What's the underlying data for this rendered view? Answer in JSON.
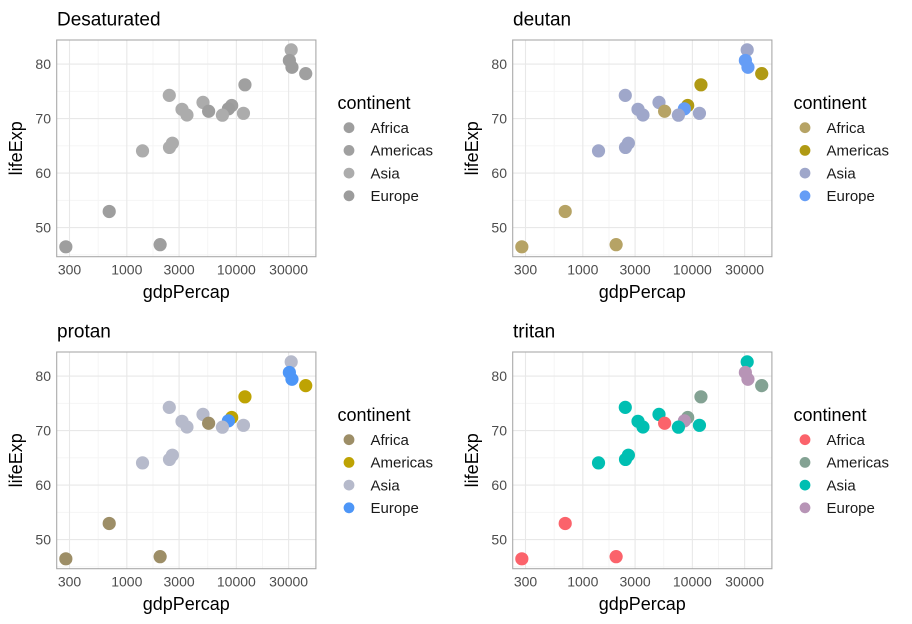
{
  "chart_data": {
    "type": "scatter",
    "figure_kind": "color-vision-deficiency simulation grid",
    "xlabel": "gdpPercap",
    "ylabel": "lifeExp",
    "x_scale": "log10",
    "x_ticks": [
      300,
      1000,
      3000,
      10000,
      30000
    ],
    "x_minor_ticks": [
      548,
      1732,
      5477,
      17321
    ],
    "y_ticks": [
      50,
      60,
      70,
      80
    ],
    "y_minor_ticks": [
      45,
      55,
      65,
      75
    ],
    "x_domain_log10": [
      2.36,
      4.726
    ],
    "y_domain": [
      44.65,
      84.41
    ],
    "grid": "on",
    "legend": {
      "title": "continent",
      "position": "right",
      "items": [
        "Africa",
        "Americas",
        "Asia",
        "Europe"
      ]
    },
    "panels": [
      {
        "title": "Desaturated",
        "palette": {
          "Africa": "#9E9E9E",
          "Americas": "#A0A0A0",
          "Asia": "#ACACAC",
          "Europe": "#9C9C9C"
        }
      },
      {
        "title": "deutan",
        "palette": {
          "Africa": "#B6A365",
          "Americas": "#B09A14",
          "Asia": "#9FA7CA",
          "Europe": "#659DF6"
        }
      },
      {
        "title": "protan",
        "palette": {
          "Africa": "#9D8E67",
          "Americas": "#BEA303",
          "Asia": "#B6BACB",
          "Europe": "#4D96F7"
        }
      },
      {
        "title": "tritan",
        "palette": {
          "Africa": "#FB636B",
          "Americas": "#83A293",
          "Asia": "#00BFB2",
          "Europe": "#B794B6"
        }
      }
    ],
    "points": [
      {
        "x": 4959.1,
        "y": 72.96,
        "continent": "Asia"
      },
      {
        "x": 2452.2,
        "y": 64.7,
        "continent": "Asia"
      },
      {
        "x": 42951.7,
        "y": 78.24,
        "continent": "Americas"
      },
      {
        "x": 3540.7,
        "y": 70.65,
        "continent": "Asia"
      },
      {
        "x": 9065.8,
        "y": 72.39,
        "continent": "Americas"
      },
      {
        "x": 2606.0,
        "y": 65.48,
        "continent": "Asia"
      },
      {
        "x": 1391.3,
        "y": 64.06,
        "continent": "Asia"
      },
      {
        "x": 2014.0,
        "y": 46.86,
        "continent": "Africa"
      },
      {
        "x": 31656.1,
        "y": 82.6,
        "continent": "Asia"
      },
      {
        "x": 11977.6,
        "y": 76.19,
        "continent": "Americas"
      },
      {
        "x": 3190.5,
        "y": 71.69,
        "continent": "Asia"
      },
      {
        "x": 2441.6,
        "y": 74.25,
        "continent": "Asia"
      },
      {
        "x": 32170.4,
        "y": 79.41,
        "continent": "Europe"
      },
      {
        "x": 5581.2,
        "y": 71.34,
        "continent": "Africa"
      },
      {
        "x": 690.8,
        "y": 52.95,
        "continent": "Africa"
      },
      {
        "x": 8458.3,
        "y": 71.78,
        "continent": "Europe"
      },
      {
        "x": 11605.7,
        "y": 70.96,
        "continent": "Asia"
      },
      {
        "x": 7458.4,
        "y": 70.62,
        "continent": "Asia"
      },
      {
        "x": 277.6,
        "y": 46.46,
        "continent": "Africa"
      },
      {
        "x": 30470.0,
        "y": 80.66,
        "continent": "Europe"
      }
    ],
    "style": {
      "page_bg": "#FFFFFF",
      "panel_bg": "#FFFFFF",
      "panel_border": "#A9A9A9",
      "grid_major": "#E8E8E8",
      "grid_minor": "#F4F4F4",
      "title_color": "#000000",
      "axis_title_color": "#000000",
      "tick_label_color": "#4D4D4D",
      "legend_text_color": "#1A1A1A"
    }
  }
}
